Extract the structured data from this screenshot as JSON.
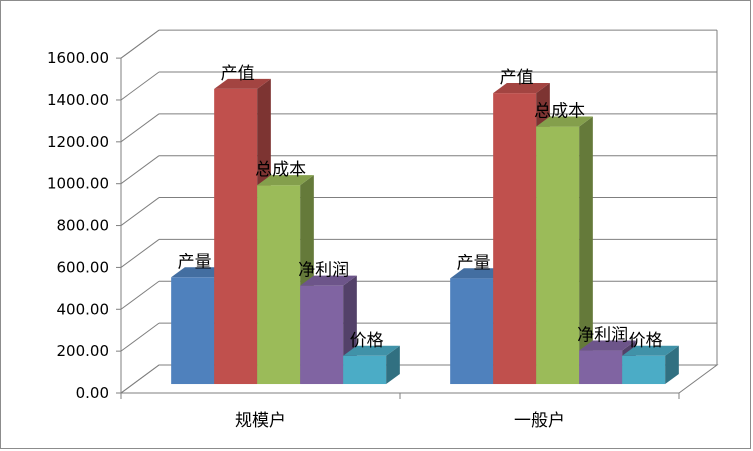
{
  "chart_data": {
    "type": "bar",
    "style": "3d-clustered-column",
    "categories": [
      "规模户",
      "一般户"
    ],
    "series": [
      {
        "name": "产量",
        "values": [
          510,
          505
        ],
        "color": "#4f81bd"
      },
      {
        "name": "产值",
        "values": [
          1410,
          1390
        ],
        "color": "#c0504d"
      },
      {
        "name": "总成本",
        "values": [
          950,
          1230
        ],
        "color": "#9bbb59"
      },
      {
        "name": "净利润",
        "values": [
          470,
          160
        ],
        "color": "#8064a2"
      },
      {
        "name": "价格",
        "values": [
          135,
          135
        ],
        "color": "#4bacc6"
      }
    ],
    "yticks": [
      "0.00",
      "200.00",
      "400.00",
      "600.00",
      "800.00",
      "1000.00",
      "1200.00",
      "1400.00",
      "1600.00"
    ],
    "ylim": [
      0,
      1600
    ],
    "grid": true,
    "data_labels": "series-name"
  }
}
